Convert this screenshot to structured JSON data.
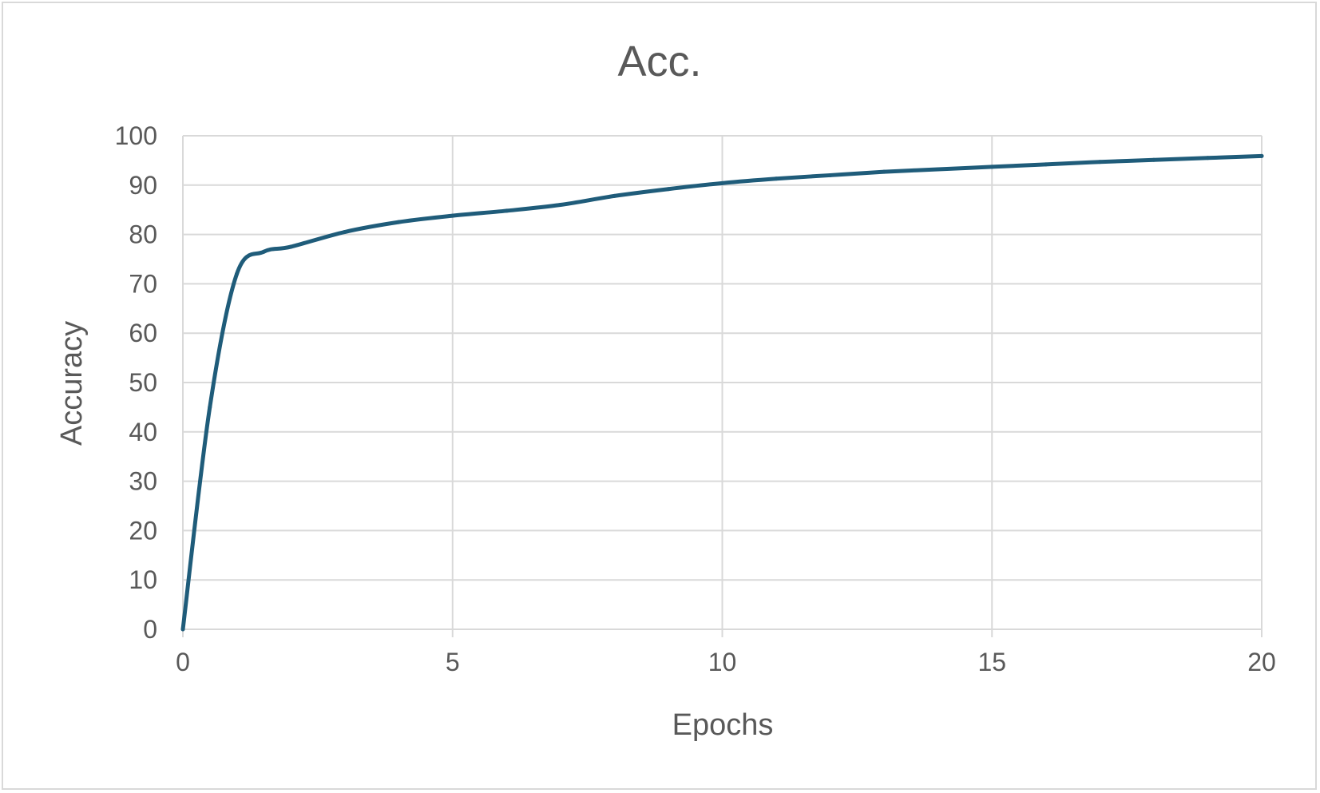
{
  "chart_data": {
    "type": "line",
    "title": "Acc.",
    "xlabel": "Epochs",
    "ylabel": "Accuracy",
    "xlim": [
      0,
      20
    ],
    "ylim": [
      0,
      100
    ],
    "x_ticks": [
      0,
      5,
      10,
      15,
      20
    ],
    "y_ticks": [
      0,
      10,
      20,
      30,
      40,
      50,
      60,
      70,
      80,
      90,
      100
    ],
    "grid": true,
    "legend": "none",
    "series": [
      {
        "color": "#1f5c7a",
        "x": [
          0,
          0.5,
          1,
          1.5,
          2,
          3,
          4,
          5,
          6,
          7,
          8,
          9,
          10,
          11,
          12,
          13,
          14,
          15,
          16,
          17,
          18,
          19,
          20
        ],
        "y": [
          0,
          45,
          72,
          76.5,
          77.5,
          80.5,
          82.5,
          83.8,
          84.8,
          86,
          87.8,
          89.2,
          90.4,
          91.3,
          92,
          92.7,
          93.2,
          93.7,
          94.2,
          94.7,
          95.1,
          95.5,
          95.9
        ]
      }
    ]
  }
}
